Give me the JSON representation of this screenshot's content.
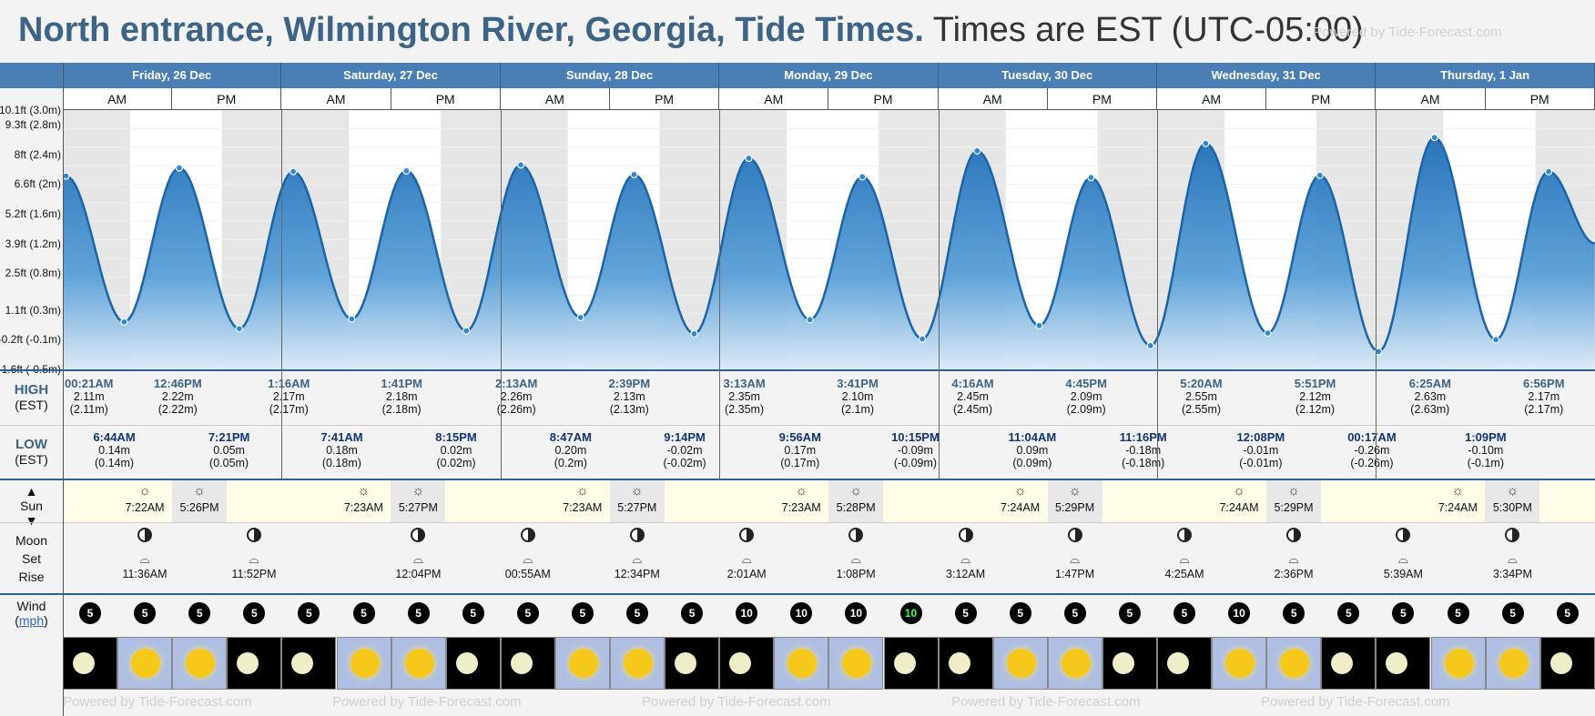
{
  "header": {
    "title": "North entrance, Wilmington River, Georgia, Tide Times.",
    "timezone": "Times are EST (UTC-05:00)",
    "powered": "Powered by Tide-Forecast.com"
  },
  "days": [
    "Friday, 26 Dec",
    "Saturday, 27 Dec",
    "Sunday, 28 Dec",
    "Monday, 29 Dec",
    "Tuesday, 30 Dec",
    "Wednesday, 31 Dec",
    "Thursday, 1 Jan"
  ],
  "ampm": {
    "am": "AM",
    "pm": "PM"
  },
  "row_labels": {
    "high": "HIGH",
    "high_tz": "(EST)",
    "low": "LOW",
    "low_tz": "(EST)",
    "sun": "Sun",
    "moon": "Moon",
    "set": "Set",
    "rise": "Rise",
    "wind": "Wind",
    "wind_unit": "mph"
  },
  "chart_data": {
    "type": "area",
    "y_ticks": [
      "10.1ft (3.0m)",
      "9.3ft (2.8m)",
      "8ft (2.4m)",
      "6.6ft (2m)",
      "5.2ft (1.6m)",
      "3.9ft (1.2m)",
      "2.5ft (0.8m)",
      "1.1ft (0.3m)",
      "-0.2ft (-0.1m)",
      "-1.6ft (-0.5m)"
    ],
    "ylim_m": [
      -0.5,
      3.0
    ],
    "x_hours_range": [
      0,
      168
    ],
    "series": [
      {
        "points": [
          {
            "h": 0,
            "m": 2.11
          },
          {
            "h": 0.35,
            "m": 2.11
          },
          {
            "h": 6.73,
            "m": 0.14
          },
          {
            "h": 12.77,
            "m": 2.22
          },
          {
            "h": 19.35,
            "m": 0.05
          },
          {
            "h": 25.27,
            "m": 2.17
          },
          {
            "h": 31.68,
            "m": 0.18
          },
          {
            "h": 37.68,
            "m": 2.18
          },
          {
            "h": 44.25,
            "m": 0.02
          },
          {
            "h": 50.22,
            "m": 2.26
          },
          {
            "h": 56.78,
            "m": 0.2
          },
          {
            "h": 62.65,
            "m": 2.13
          },
          {
            "h": 69.23,
            "m": -0.02
          },
          {
            "h": 75.22,
            "m": 2.35
          },
          {
            "h": 81.93,
            "m": 0.17
          },
          {
            "h": 87.68,
            "m": 2.1
          },
          {
            "h": 94.25,
            "m": -0.09
          },
          {
            "h": 100.27,
            "m": 2.45
          },
          {
            "h": 107.07,
            "m": 0.09
          },
          {
            "h": 112.75,
            "m": 2.09
          },
          {
            "h": 119.27,
            "m": -0.18
          },
          {
            "h": 125.33,
            "m": 2.55
          },
          {
            "h": 132.13,
            "m": -0.01
          },
          {
            "h": 137.85,
            "m": 2.12
          },
          {
            "h": 144.28,
            "m": -0.26
          },
          {
            "h": 150.42,
            "m": 2.63
          },
          {
            "h": 157.15,
            "m": -0.1
          },
          {
            "h": 162.93,
            "m": 2.17
          },
          {
            "h": 168,
            "m": 1.2
          }
        ]
      }
    ],
    "night_bands_hours": [
      [
        0,
        7.37
      ],
      [
        17.43,
        31.38
      ],
      [
        41.45,
        55.38
      ],
      [
        65.45,
        79.38
      ],
      [
        89.47,
        103.4
      ],
      [
        113.48,
        127.4
      ],
      [
        137.48,
        151.4
      ],
      [
        161.5,
        168
      ]
    ]
  },
  "highs": [
    {
      "time": "00:21AM",
      "m": "2.11m",
      "m2": "(2.11m)"
    },
    {
      "time": "12:46PM",
      "m": "2.22m",
      "m2": "(2.22m)"
    },
    {
      "time": "1:16AM",
      "m": "2.17m",
      "m2": "(2.17m)"
    },
    {
      "time": "1:41PM",
      "m": "2.18m",
      "m2": "(2.18m)"
    },
    {
      "time": "2:13AM",
      "m": "2.26m",
      "m2": "(2.26m)"
    },
    {
      "time": "2:39PM",
      "m": "2.13m",
      "m2": "(2.13m)"
    },
    {
      "time": "3:13AM",
      "m": "2.35m",
      "m2": "(2.35m)"
    },
    {
      "time": "3:41PM",
      "m": "2.10m",
      "m2": "(2.1m)"
    },
    {
      "time": "4:16AM",
      "m": "2.45m",
      "m2": "(2.45m)"
    },
    {
      "time": "4:45PM",
      "m": "2.09m",
      "m2": "(2.09m)"
    },
    {
      "time": "5:20AM",
      "m": "2.55m",
      "m2": "(2.55m)"
    },
    {
      "time": "5:51PM",
      "m": "2.12m",
      "m2": "(2.12m)"
    },
    {
      "time": "6:25AM",
      "m": "2.63m",
      "m2": "(2.63m)"
    },
    {
      "time": "6:56PM",
      "m": "2.17m",
      "m2": "(2.17m)"
    }
  ],
  "lows": [
    {
      "time": "6:44AM",
      "m": "0.14m",
      "m2": "(0.14m)"
    },
    {
      "time": "7:21PM",
      "m": "0.05m",
      "m2": "(0.05m)"
    },
    {
      "time": "7:41AM",
      "m": "0.18m",
      "m2": "(0.18m)"
    },
    {
      "time": "8:15PM",
      "m": "0.02m",
      "m2": "(0.02m)"
    },
    {
      "time": "8:47AM",
      "m": "0.20m",
      "m2": "(0.2m)"
    },
    {
      "time": "9:14PM",
      "m": "-0.02m",
      "m2": "(-0.02m)"
    },
    {
      "time": "9:56AM",
      "m": "0.17m",
      "m2": "(0.17m)"
    },
    {
      "time": "10:15PM",
      "m": "-0.09m",
      "m2": "(-0.09m)"
    },
    {
      "time": "11:04AM",
      "m": "0.09m",
      "m2": "(0.09m)"
    },
    {
      "time": "11:16PM",
      "m": "-0.18m",
      "m2": "(-0.18m)"
    },
    {
      "time": "12:08PM",
      "m": "-0.01m",
      "m2": "(-0.01m)"
    },
    {
      "time": "00:17AM",
      "m": "-0.26m",
      "m2": "(-0.26m)"
    },
    {
      "time": "1:09PM",
      "m": "-0.10m",
      "m2": "(-0.1m)"
    }
  ],
  "sun": [
    {
      "rise": "7:22AM",
      "set": "5:26PM"
    },
    {
      "rise": "7:23AM",
      "set": "5:27PM"
    },
    {
      "rise": "7:23AM",
      "set": "5:27PM"
    },
    {
      "rise": "7:23AM",
      "set": "5:28PM"
    },
    {
      "rise": "7:24AM",
      "set": "5:29PM"
    },
    {
      "rise": "7:24AM",
      "set": "5:29PM"
    },
    {
      "rise": "7:24AM",
      "set": "5:30PM"
    }
  ],
  "moon": [
    {
      "time": "11:36AM"
    },
    {
      "time": "11:52PM"
    },
    {
      "time": "12:04PM"
    },
    {
      "time": "00:55AM"
    },
    {
      "time": "12:34PM"
    },
    {
      "time": "2:01AM"
    },
    {
      "time": "1:08PM"
    },
    {
      "time": "3:12AM"
    },
    {
      "time": "1:47PM"
    },
    {
      "time": "4:25AM"
    },
    {
      "time": "2:36PM"
    },
    {
      "time": "5:39AM"
    },
    {
      "time": "3:34PM"
    }
  ],
  "wind": [
    "5",
    "5",
    "5",
    "5",
    "5",
    "5",
    "5",
    "5",
    "5",
    "5",
    "5",
    "5",
    "10",
    "10",
    "10",
    "10",
    "5",
    "5",
    "5",
    "5",
    "5",
    "10",
    "5",
    "5",
    "5",
    "5",
    "5",
    "5"
  ],
  "weather": [
    "night",
    "day",
    "day",
    "night",
    "night",
    "day",
    "day",
    "night",
    "night",
    "day",
    "day",
    "night",
    "night",
    "day",
    "day",
    "night",
    "night",
    "day",
    "day",
    "night",
    "night",
    "day",
    "day",
    "night",
    "night",
    "day",
    "day",
    "night"
  ]
}
